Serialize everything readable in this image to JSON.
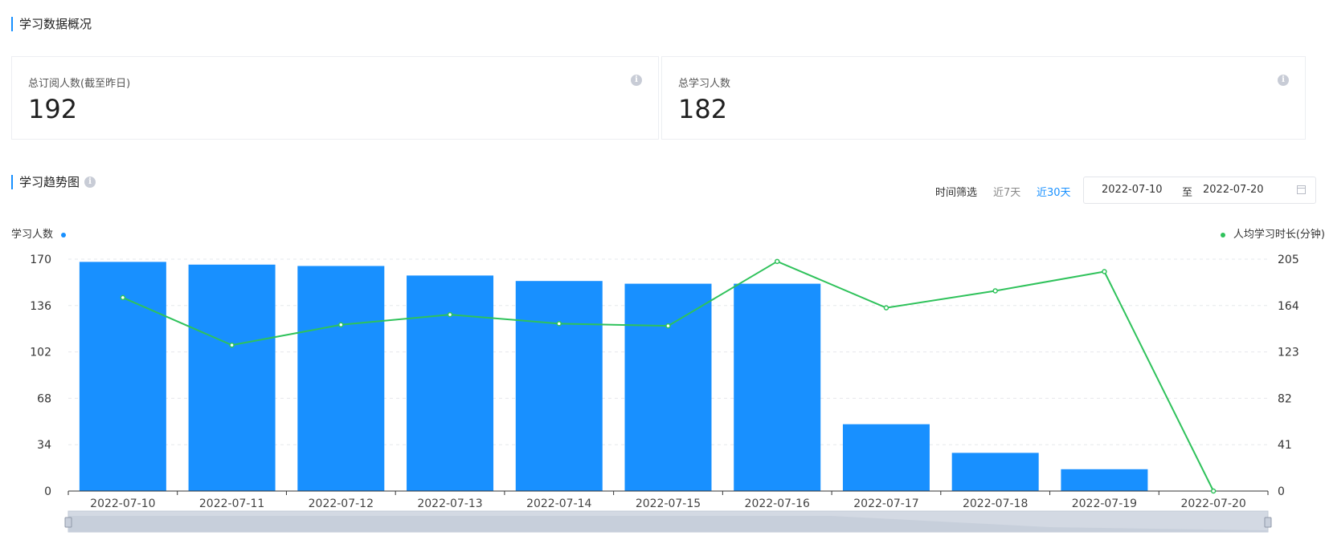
{
  "overview": {
    "title": "学习数据概况",
    "cards": [
      {
        "label": "总订阅人数(截至昨日)",
        "value": "192"
      },
      {
        "label": "总学习人数",
        "value": "182"
      }
    ]
  },
  "trend": {
    "title": "学习趋势图",
    "filter_label": "时间筛选",
    "filter_7": "近7天",
    "filter_30": "近30天",
    "date_start": "2022-07-10",
    "date_sep": "至",
    "date_end": "2022-07-20",
    "legend_left": "学习人数",
    "legend_right": "人均学习时长(分钟)"
  },
  "colors": {
    "bar": "#1890ff",
    "line": "#2fc25b",
    "accent": "#1890ff"
  },
  "chart_data": {
    "type": "bar",
    "categories": [
      "2022-07-10",
      "2022-07-11",
      "2022-07-12",
      "2022-07-13",
      "2022-07-14",
      "2022-07-15",
      "2022-07-16",
      "2022-07-17",
      "2022-07-18",
      "2022-07-19",
      "2022-07-20"
    ],
    "series": [
      {
        "name": "学习人数",
        "type": "bar",
        "axis": "left",
        "values": [
          168,
          166,
          165,
          158,
          154,
          152,
          152,
          49,
          28,
          16,
          0
        ]
      },
      {
        "name": "人均学习时长(分钟)",
        "type": "line",
        "axis": "right",
        "values": [
          171,
          129,
          147,
          156,
          148,
          146,
          203,
          162,
          177,
          194,
          0
        ]
      }
    ],
    "y_left": {
      "ticks": [
        0,
        34,
        68,
        102,
        136,
        170
      ],
      "range": [
        0,
        170
      ]
    },
    "y_right": {
      "ticks": [
        0,
        41,
        82,
        123,
        164,
        205
      ],
      "range": [
        0,
        205
      ]
    },
    "grid": true
  }
}
